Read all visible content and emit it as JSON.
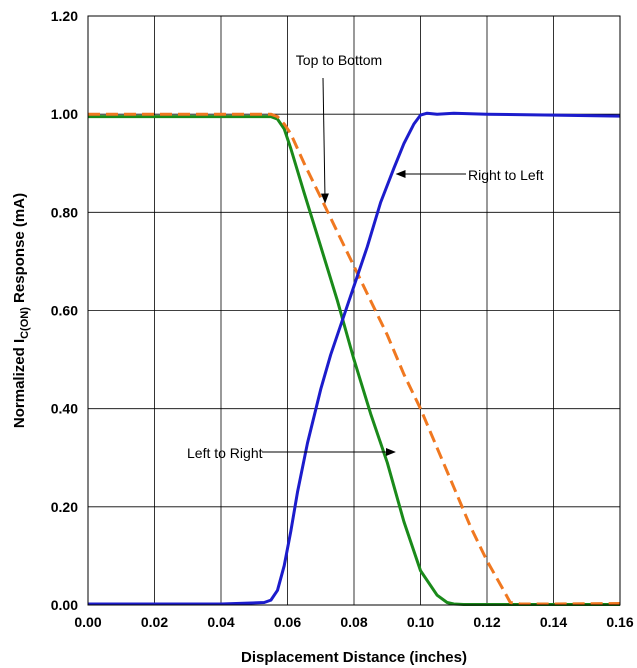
{
  "chart_data": {
    "type": "line",
    "title": "",
    "xlabel": "Displacement Distance (inches)",
    "ylabel": {
      "prefix": "Normalized I",
      "subscript": "C(ON)",
      "suffix": " Response (mA)"
    },
    "xlim": [
      0,
      0.16
    ],
    "ylim": [
      0,
      1.2
    ],
    "x_ticks": [
      "0.00",
      "0.02",
      "0.04",
      "0.06",
      "0.08",
      "0.10",
      "0.12",
      "0.14",
      "0.16"
    ],
    "y_ticks": [
      "0.00",
      "0.20",
      "0.40",
      "0.60",
      "0.80",
      "1.00",
      "1.20"
    ],
    "grid": true,
    "legend": "none",
    "series": [
      {
        "name": "Left to Right",
        "color": "#1a8a1a",
        "style": "solid",
        "x": [
          0.0,
          0.02,
          0.04,
          0.055,
          0.057,
          0.059,
          0.061,
          0.065,
          0.07,
          0.075,
          0.08,
          0.085,
          0.09,
          0.095,
          0.1,
          0.105,
          0.108,
          0.11,
          0.113,
          0.12,
          0.14,
          0.16
        ],
        "y": [
          0.995,
          0.995,
          0.995,
          0.995,
          0.99,
          0.97,
          0.93,
          0.84,
          0.73,
          0.62,
          0.5,
          0.39,
          0.29,
          0.17,
          0.07,
          0.02,
          0.005,
          0.002,
          0.001,
          0.001,
          0.001,
          0.001
        ]
      },
      {
        "name": "Top to Bottom",
        "color": "#f07820",
        "style": "dashed",
        "x": [
          0.0,
          0.02,
          0.04,
          0.055,
          0.057,
          0.059,
          0.061,
          0.065,
          0.07,
          0.075,
          0.08,
          0.085,
          0.09,
          0.095,
          0.1,
          0.105,
          0.11,
          0.115,
          0.12,
          0.125,
          0.127,
          0.13,
          0.14,
          0.16
        ],
        "y": [
          1.0,
          1.0,
          1.0,
          1.0,
          0.995,
          0.98,
          0.96,
          0.9,
          0.83,
          0.76,
          0.69,
          0.62,
          0.55,
          0.47,
          0.4,
          0.32,
          0.24,
          0.16,
          0.09,
          0.03,
          0.005,
          0.002,
          0.002,
          0.003
        ]
      },
      {
        "name": "Right to Left",
        "color": "#1c1ccc",
        "style": "solid",
        "x": [
          0.0,
          0.02,
          0.04,
          0.053,
          0.055,
          0.057,
          0.059,
          0.061,
          0.063,
          0.066,
          0.07,
          0.073,
          0.076,
          0.08,
          0.084,
          0.088,
          0.092,
          0.095,
          0.098,
          0.1,
          0.102,
          0.105,
          0.11,
          0.12,
          0.14,
          0.16
        ],
        "y": [
          0.002,
          0.002,
          0.002,
          0.005,
          0.01,
          0.03,
          0.08,
          0.15,
          0.23,
          0.33,
          0.44,
          0.51,
          0.57,
          0.65,
          0.73,
          0.82,
          0.89,
          0.94,
          0.98,
          0.998,
          1.002,
          1.0,
          1.002,
          1.0,
          0.998,
          0.996
        ]
      }
    ],
    "annotations": [
      {
        "text": "Top to Bottom",
        "series": "Top to Bottom"
      },
      {
        "text": "Right to Left",
        "series": "Right to Left"
      },
      {
        "text": "Left to Right",
        "series": "Left to Right"
      }
    ]
  }
}
